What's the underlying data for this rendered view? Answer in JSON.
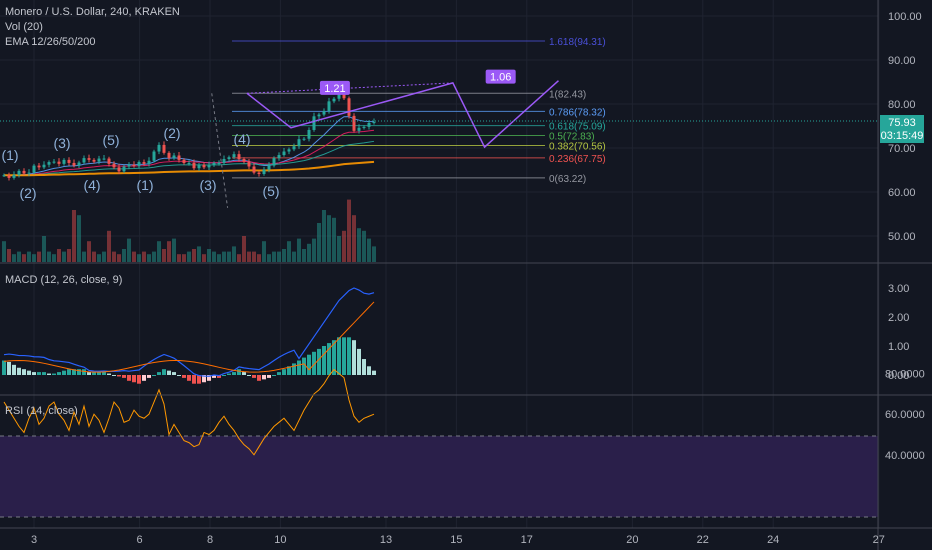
{
  "header": {
    "symbol_line": "Monero / U.S. Dollar, 240, KRAKEN",
    "vol_line": "Vol (20)",
    "ema_line": "EMA 12/26/50/200"
  },
  "macd_pane": {
    "title": "MACD (12, 26, close, 9)"
  },
  "rsi_pane": {
    "title": "RSI (14, close)"
  },
  "price_badge": {
    "price": "75.93",
    "countdown": "03:15:49",
    "color": "#26a69a"
  },
  "colors": {
    "background": "#131722",
    "up": "#26a69a",
    "down": "#ef5350",
    "pattern": "#9b59f6",
    "rsi_band": "#2a1f4a"
  },
  "chart_data": [
    {
      "type": "candlestick",
      "title": "Monero / U.S. Dollar, 240, KRAKEN",
      "x_ticks": [
        "3",
        "6",
        "8",
        "10",
        "13",
        "15",
        "17",
        "20",
        "22",
        "24",
        "27"
      ],
      "y_ticks": [
        "100.00",
        "90.00",
        "80.00",
        "70.00",
        "60.00",
        "50.00"
      ],
      "ylim": [
        44,
        102
      ],
      "close": [
        63.8,
        63.2,
        63.9,
        64.8,
        64.2,
        64.4,
        66.0,
        65.6,
        66.2,
        66.8,
        66.9,
        66.4,
        67.3,
        66.6,
        66.0,
        66.7,
        67.7,
        67.3,
        66.9,
        67.6,
        67.6,
        66.4,
        65.6,
        64.7,
        65.8,
        66.2,
        65.9,
        66.8,
        66.4,
        67.1,
        69.2,
        70.7,
        68.9,
        67.7,
        68.3,
        67.3,
        66.6,
        66.6,
        65.4,
        66.2,
        65.6,
        66.1,
        66.6,
        66.6,
        67.5,
        67.9,
        68.6,
        67.5,
        66.9,
        65.8,
        64.4,
        64.1,
        65.1,
        66.0,
        67.7,
        68.4,
        69.2,
        69.7,
        70.4,
        72.0,
        72.1,
        74.1,
        77.2,
        77.6,
        78.4,
        80.6,
        81.2,
        82.4,
        81.3,
        77.3,
        73.9,
        74.6,
        74.8,
        75.7,
        75.9
      ],
      "volume": [
        8,
        5,
        3,
        4,
        3,
        4,
        3,
        4,
        10,
        4,
        3,
        5,
        4,
        5,
        20,
        18,
        4,
        8,
        4,
        3,
        4,
        12,
        4,
        3,
        5,
        9,
        4,
        3,
        4,
        3,
        4,
        8,
        5,
        8,
        9,
        3,
        3,
        4,
        5,
        6,
        3,
        5,
        4,
        3,
        4,
        4,
        6,
        3,
        10,
        4,
        4,
        3,
        8,
        3,
        4,
        4,
        5,
        8,
        4,
        9,
        5,
        7,
        9,
        15,
        20,
        18,
        17,
        10,
        12,
        24,
        18,
        13,
        12,
        9,
        6
      ],
      "pattern_points": [
        [
          8.05,
          82.43
        ],
        [
          8.5,
          63.22
        ],
        [
          9.05,
          82.43
        ],
        [
          10.3,
          74.6
        ],
        [
          14.9,
          84.8
        ],
        [
          15.8,
          70.2
        ],
        [
          17.9,
          85.3
        ]
      ],
      "pattern_labels": [
        "1.21",
        "1.06"
      ],
      "fib_levels": [
        {
          "label": "1.618(94.31)",
          "value": 94.31,
          "color": "#4a50d8"
        },
        {
          "label": "1(82.43)",
          "value": 82.43,
          "color": "#9598a1"
        },
        {
          "label": "0.786(78.32)",
          "value": 78.32,
          "color": "#5b9cf6"
        },
        {
          "label": "0.618(75.09)",
          "value": 75.09,
          "color": "#26a69a"
        },
        {
          "label": "0.5(72.83)",
          "value": 72.83,
          "color": "#4caf50"
        },
        {
          "label": "0.382(70.56)",
          "value": 70.56,
          "color": "#b6c742"
        },
        {
          "label": "0.236(67.75)",
          "value": 67.75,
          "color": "#ef5350"
        },
        {
          "label": "0(63.22)",
          "value": 63.22,
          "color": "#9598a1"
        }
      ],
      "wave_labels": [
        "(1)",
        "(2)",
        "(3)",
        "(4)",
        "(5)",
        "(1)",
        "(2)",
        "(3)",
        "(4)",
        "(5)"
      ]
    },
    {
      "type": "bar",
      "title": "MACD (12, 26, close, 9)",
      "y_ticks": [
        "3.00",
        "2.00",
        "1.00",
        "0.00"
      ],
      "histogram": [
        0.5,
        0.45,
        0.35,
        0.25,
        0.2,
        0.15,
        0.1,
        0.1,
        0.1,
        0.05,
        0.05,
        0.1,
        0.15,
        0.2,
        0.2,
        0.2,
        0.2,
        0.1,
        0.1,
        0.1,
        0.1,
        0.05,
        0.0,
        -0.05,
        -0.1,
        -0.2,
        -0.25,
        -0.3,
        -0.2,
        -0.1,
        0.0,
        0.1,
        0.2,
        0.15,
        0.1,
        0.0,
        -0.1,
        -0.2,
        -0.3,
        -0.3,
        -0.25,
        -0.2,
        -0.1,
        -0.1,
        0.0,
        0.05,
        0.1,
        0.2,
        0.1,
        0.0,
        -0.1,
        -0.2,
        -0.15,
        -0.1,
        0.0,
        0.1,
        0.2,
        0.3,
        0.4,
        0.5,
        0.6,
        0.7,
        0.8,
        0.9,
        1.0,
        1.1,
        1.2,
        1.3,
        1.3,
        1.3,
        1.2,
        0.9,
        0.55,
        0.3,
        0.15
      ]
    },
    {
      "type": "line",
      "title": "RSI (14, close)",
      "y_ticks": [
        "80.0000",
        "60.0000",
        "40.0000"
      ],
      "band": [
        30,
        70
      ],
      "values": [
        66,
        62,
        58,
        54,
        51,
        58,
        63,
        55,
        58,
        64,
        66,
        60,
        57,
        52,
        61,
        55,
        64,
        54,
        60,
        57,
        51,
        58,
        66,
        63,
        56,
        57,
        62,
        59,
        58,
        60,
        66,
        72,
        65,
        50,
        55,
        51,
        47,
        46,
        44,
        45,
        51,
        50,
        52,
        56,
        59,
        55,
        52,
        48,
        45,
        43,
        40,
        44,
        48,
        51,
        54,
        56,
        58,
        55,
        52,
        57,
        62,
        66,
        70,
        72,
        75,
        79,
        82,
        80,
        78,
        67,
        59,
        56,
        58,
        59,
        60
      ]
    }
  ]
}
